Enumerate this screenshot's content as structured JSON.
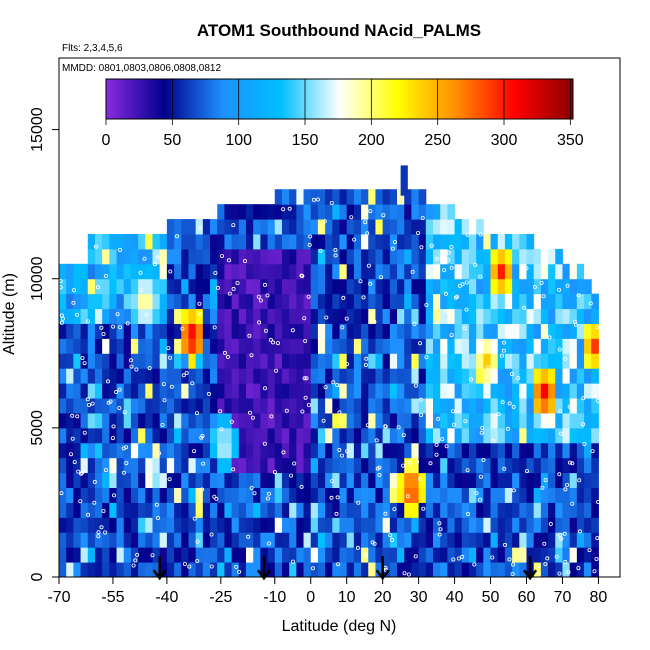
{
  "chart_data": {
    "type": "heatmap",
    "title": "ATOM1 Southbound NAcid_PALMS",
    "flights_label": "Flts: 2,3,4,5,6",
    "dates_label": "MMDD: 0801,0803,0806,0808,0812",
    "xlabel": "Latitude (deg N)",
    "ylabel": "Altitude (m)",
    "xlim": [
      -70,
      86
    ],
    "ylim": [
      0,
      17400
    ],
    "x_ticks": [
      {
        "value": -70,
        "label": "-70"
      },
      {
        "value": -55,
        "label": "-55"
      },
      {
        "value": -40,
        "label": "-40"
      },
      {
        "value": -25,
        "label": "-25"
      },
      {
        "value": -10,
        "label": "-10"
      },
      {
        "value": 0,
        "label": "0"
      },
      {
        "value": 10,
        "label": "10"
      },
      {
        "value": 20,
        "label": "20"
      },
      {
        "value": 30,
        "label": "30"
      },
      {
        "value": 40,
        "label": "40"
      },
      {
        "value": 50,
        "label": "50"
      },
      {
        "value": 60,
        "label": "60"
      },
      {
        "value": 70,
        "label": "70"
      },
      {
        "value": 80,
        "label": "80"
      }
    ],
    "y_ticks": [
      {
        "value": 0,
        "label": "0"
      },
      {
        "value": 5000,
        "label": "5000"
      },
      {
        "value": 10000,
        "label": "10000"
      },
      {
        "value": 15000,
        "label": "15000"
      }
    ],
    "colorbar": {
      "range": [
        0,
        352
      ],
      "ticks": [
        "0",
        "50",
        "100",
        "150",
        "200",
        "250",
        "300",
        "350"
      ],
      "tick_values": [
        0,
        50,
        100,
        150,
        200,
        250,
        300,
        350
      ],
      "stops": [
        "#8a2be2",
        "#00008b",
        "#1e90ff",
        "#00bfff",
        "#ffffff",
        "#ffff00",
        "#ff8c00",
        "#ff0000",
        "#8b0000"
      ]
    },
    "arrows_lat": [
      -42,
      -13,
      20,
      61
    ],
    "altitude_profile": {
      "lat_edges": [
        -70,
        -62,
        -55,
        -48,
        -40,
        -33,
        -25,
        -18,
        -10,
        -5,
        3,
        10,
        16,
        24,
        32,
        40,
        48,
        56,
        63,
        70,
        78,
        80
      ],
      "tops_m": [
        10200,
        11100,
        11200,
        11400,
        11900,
        11900,
        12300,
        12300,
        12800,
        12800,
        12800,
        12800,
        12800,
        12800,
        12300,
        11900,
        11500,
        11100,
        10600,
        10200,
        9500
      ],
      "cell_height_m": 500
    },
    "hotspots": [
      {
        "lat": -34,
        "alt": 7800,
        "value": 330
      },
      {
        "lat": 52,
        "alt": 10000,
        "value": 300
      },
      {
        "lat": 64,
        "alt": 5900,
        "value": 320
      },
      {
        "lat": 78,
        "alt": 7500,
        "value": 290
      },
      {
        "lat": 27,
        "alt": 2700,
        "value": 310
      },
      {
        "lat": 48,
        "alt": 7000,
        "value": 240
      },
      {
        "lat": -47,
        "alt": 9000,
        "value": 210
      },
      {
        "lat": -25,
        "alt": 4200,
        "value": 180
      }
    ]
  }
}
